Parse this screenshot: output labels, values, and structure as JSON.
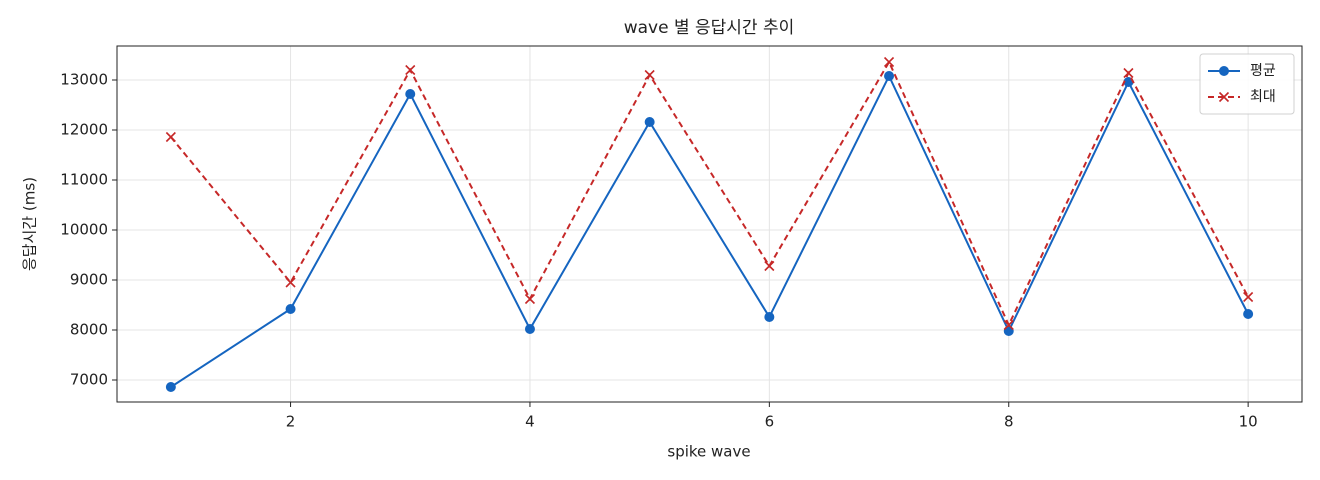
{
  "chart_data": {
    "type": "line",
    "title": "wave 별 응답시간 추이",
    "xlabel": "spike wave",
    "ylabel": "응답시간 (ms)",
    "x": [
      1,
      2,
      3,
      4,
      5,
      6,
      7,
      8,
      9,
      10
    ],
    "series": [
      {
        "name": "평균",
        "color": "#1565c0",
        "marker": "circle",
        "dash": false,
        "values": [
          6860,
          8420,
          12720,
          8020,
          12160,
          8260,
          13080,
          7980,
          12960,
          8320
        ]
      },
      {
        "name": "최대",
        "color": "#c62828",
        "marker": "x",
        "dash": true,
        "values": [
          11860,
          8950,
          13200,
          8620,
          13100,
          9280,
          13360,
          8100,
          13140,
          8660
        ]
      }
    ],
    "xlim": [
      0.55,
      10.45
    ],
    "xticks": [
      2,
      4,
      6,
      8,
      10
    ],
    "ylim": [
      6560,
      13680
    ],
    "yticks": [
      7000,
      8000,
      9000,
      10000,
      11000,
      12000,
      13000
    ],
    "grid": true,
    "legend": "upper right"
  }
}
